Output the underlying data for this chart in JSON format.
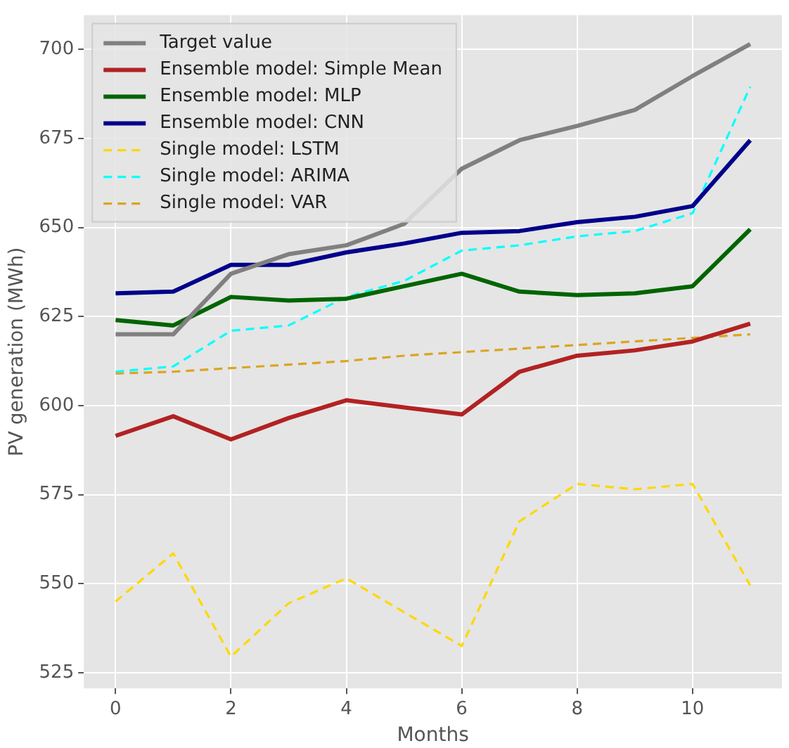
{
  "chart_data": {
    "type": "line",
    "xlabel": "Months",
    "ylabel": "PV generation (MWh)",
    "x": [
      0,
      1,
      2,
      3,
      4,
      5,
      6,
      7,
      8,
      9,
      10,
      11
    ],
    "xlim": [
      -0.55,
      11.55
    ],
    "xticks": [
      0,
      2,
      4,
      6,
      8,
      10
    ],
    "ylim": [
      520.6,
      709.6
    ],
    "yticks": [
      525,
      550,
      575,
      600,
      625,
      650,
      675,
      700
    ],
    "grid": true,
    "legend": "top left",
    "marker": "none",
    "series": [
      {
        "name": "Target value",
        "color": "#808080",
        "line_style": "solid",
        "values": [
          620,
          620,
          637,
          642.5,
          645,
          651,
          666.5,
          674.5,
          678.5,
          683,
          692.5,
          701.5
        ]
      },
      {
        "name": "Ensemble model: Simple Mean",
        "color": "#b22222",
        "line_style": "solid",
        "values": [
          591.5,
          597,
          590.5,
          596.5,
          601.5,
          599.5,
          597.5,
          609.5,
          614,
          615.5,
          618,
          623
        ]
      },
      {
        "name": "Ensemble model: MLP",
        "color": "#006400",
        "line_style": "solid",
        "values": [
          624,
          622.5,
          630.5,
          629.5,
          630,
          633.5,
          637,
          632,
          631,
          631.5,
          633.5,
          649.5
        ]
      },
      {
        "name": "Ensemble model: CNN",
        "color": "#00008b",
        "line_style": "solid",
        "values": [
          631.5,
          632,
          639.5,
          639.5,
          643,
          645.5,
          648.5,
          649,
          651.5,
          653,
          656,
          674.5
        ]
      },
      {
        "name": "Single model: LSTM",
        "color": "#ffd700",
        "line_style": "dashed",
        "values": [
          545,
          558.5,
          529.5,
          544.5,
          551.5,
          542,
          532.5,
          567.5,
          578,
          576.5,
          578,
          549.5
        ]
      },
      {
        "name": "Single model: ARIMA",
        "color": "#00ffff",
        "line_style": "dashed",
        "values": [
          609.5,
          611,
          621,
          622.5,
          630.5,
          635,
          643.5,
          645,
          647.5,
          649,
          654,
          689.5
        ]
      },
      {
        "name": "Single model: VAR",
        "color": "#daa520",
        "line_style": "dashed",
        "values": [
          609,
          609.5,
          610.5,
          611.5,
          612.5,
          614,
          615,
          616,
          617,
          618,
          619,
          620
        ]
      }
    ]
  }
}
